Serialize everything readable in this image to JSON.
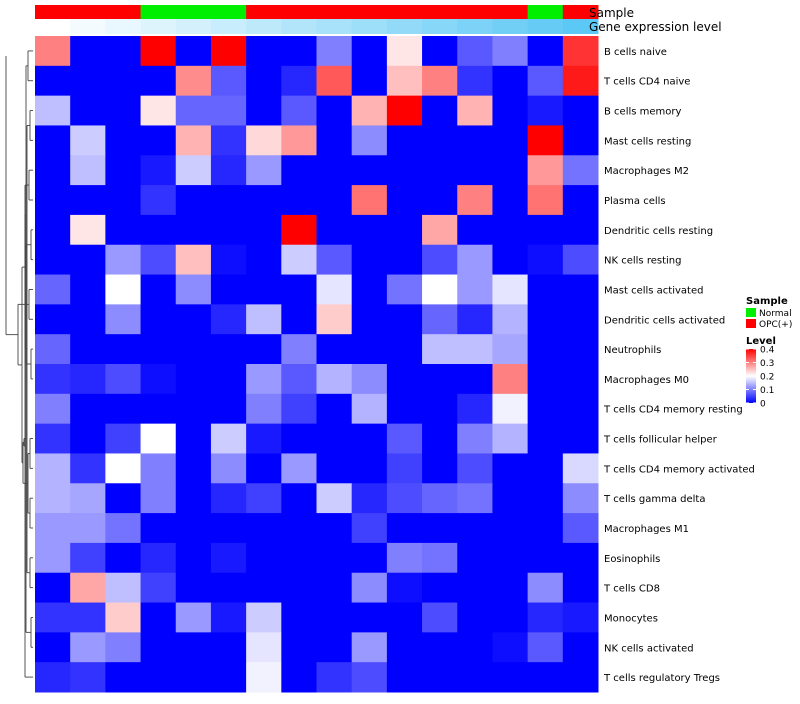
{
  "chart_data": {
    "type": "heatmap",
    "title": "",
    "annotation_labels": {
      "sample": "Sample",
      "gene_expression": "Gene expression level"
    },
    "sample_groups": [
      "OPC(+)",
      "OPC(+)",
      "OPC(+)",
      "Normal",
      "Normal",
      "Normal",
      "OPC(+)",
      "OPC(+)",
      "OPC(+)",
      "OPC(+)",
      "OPC(+)",
      "OPC(+)",
      "OPC(+)",
      "OPC(+)",
      "Normal",
      "OPC(+)"
    ],
    "gene_expression_levels": [
      0.02,
      0.05,
      0.08,
      0.11,
      0.14,
      0.17,
      0.2,
      0.23,
      0.26,
      0.29,
      0.32,
      0.35,
      0.38,
      0.41,
      0.44,
      0.47
    ],
    "rows": [
      "B cells naive",
      "T cells CD4 naive",
      "B cells memory",
      "Mast cells resting",
      "Macrophages M2",
      "Plasma cells",
      "Dendritic cells resting",
      "NK cells resting",
      "Mast cells activated",
      "Dendritic cells activated",
      "Neutrophils",
      "Macrophages M0",
      "T cells CD4 memory resting",
      "T cells follicular helper",
      "T cells CD4 memory activated",
      "T cells gamma delta",
      "Macrophages M1",
      "Eosinophils",
      "T cells CD8",
      "Monocytes",
      "NK cells activated",
      "T cells regulatory  Tregs"
    ],
    "values": [
      [
        0.3,
        0,
        0,
        0.4,
        0,
        0.4,
        0,
        0,
        0.1,
        0,
        0.22,
        0,
        0.07,
        0.1,
        0,
        0.36
      ],
      [
        0,
        0,
        0,
        0,
        0.29,
        0.07,
        0,
        0.03,
        0.33,
        0,
        0.25,
        0.3,
        0.04,
        0,
        0.07,
        0.38
      ],
      [
        0.15,
        0,
        0,
        0.22,
        0.08,
        0.08,
        0,
        0.07,
        0,
        0.26,
        0.4,
        0,
        0.26,
        0,
        0.02,
        0
      ],
      [
        0,
        0.16,
        0,
        0,
        0.26,
        0.04,
        0.23,
        0.28,
        0,
        0.11,
        0,
        0,
        0,
        0,
        0.4,
        0
      ],
      [
        0,
        0.15,
        0,
        0.02,
        0.16,
        0.03,
        0.12,
        0,
        0,
        0,
        0,
        0,
        0,
        0,
        0.28,
        0.09
      ],
      [
        0,
        0,
        0,
        0.04,
        0,
        0,
        0,
        0,
        0,
        0.31,
        0,
        0,
        0.3,
        0,
        0.31,
        0
      ],
      [
        0,
        0.22,
        0,
        0,
        0,
        0,
        0,
        0.4,
        0,
        0,
        0,
        0.27,
        0,
        0,
        0,
        0
      ],
      [
        0,
        0,
        0.12,
        0.06,
        0.25,
        0.01,
        0,
        0.16,
        0.07,
        0,
        0,
        0.06,
        0.12,
        0,
        0.01,
        0.06
      ],
      [
        0.08,
        0,
        0.2,
        0,
        0.11,
        0,
        0,
        0,
        0.18,
        0,
        0.09,
        0.2,
        0.12,
        0.18,
        0,
        0
      ],
      [
        0,
        0,
        0.11,
        0,
        0,
        0.03,
        0.15,
        0,
        0.24,
        0,
        0,
        0.08,
        0.03,
        0.14,
        0,
        0
      ],
      [
        0.08,
        0,
        0,
        0,
        0,
        0,
        0,
        0.1,
        0,
        0,
        0,
        0.15,
        0.15,
        0.13,
        0,
        0
      ],
      [
        0.04,
        0.03,
        0.06,
        0.01,
        0,
        0,
        0.12,
        0.07,
        0.14,
        0.11,
        0,
        0,
        0,
        0.3,
        0,
        0
      ],
      [
        0.1,
        0,
        0,
        0,
        0,
        0,
        0.1,
        0.05,
        0,
        0.14,
        0,
        0,
        0.03,
        0.19,
        0,
        0
      ],
      [
        0.04,
        0,
        0.05,
        0.2,
        0,
        0.16,
        0.02,
        0,
        0,
        0,
        0.07,
        0,
        0.1,
        0.14,
        0,
        0
      ],
      [
        0.14,
        0.04,
        0.2,
        0.1,
        0,
        0.11,
        0,
        0.12,
        0,
        0,
        0.05,
        0,
        0.06,
        0,
        0,
        0.17
      ],
      [
        0.14,
        0.13,
        0,
        0.1,
        0,
        0.03,
        0.05,
        0,
        0.16,
        0.03,
        0.06,
        0.08,
        0.09,
        0,
        0,
        0.11
      ],
      [
        0.12,
        0.12,
        0.09,
        0,
        0,
        0,
        0,
        0,
        0,
        0.05,
        0,
        0,
        0,
        0,
        0,
        0.07
      ],
      [
        0.12,
        0.05,
        0,
        0.03,
        0,
        0.02,
        0,
        0,
        0,
        0,
        0.1,
        0.09,
        0,
        0,
        0,
        0
      ],
      [
        0,
        0.27,
        0.15,
        0.05,
        0,
        0,
        0,
        0,
        0,
        0.11,
        0.01,
        0,
        0,
        0,
        0.11,
        0
      ],
      [
        0.04,
        0.04,
        0.24,
        0,
        0.12,
        0.02,
        0.16,
        0,
        0,
        0,
        0,
        0.06,
        0,
        0,
        0.03,
        0.02
      ],
      [
        0,
        0.12,
        0.1,
        0,
        0,
        0,
        0.18,
        0,
        0,
        0.12,
        0,
        0,
        0,
        0.01,
        0.07,
        0
      ],
      [
        0.03,
        0.04,
        0,
        0,
        0,
        0,
        0.19,
        0,
        0.04,
        0.06,
        0,
        0,
        0,
        0,
        0,
        0
      ]
    ],
    "color_scale": {
      "min": 0,
      "mid": 0.2,
      "max": 0.4,
      "low": "#0000FF",
      "mid_color": "#FFFFFF",
      "high": "#FF0000"
    },
    "legend": {
      "sample_title": "Sample",
      "sample_entries": [
        {
          "label": "Normal",
          "color": "#00EE00"
        },
        {
          "label": "OPC(+)",
          "color": "#FF0000"
        }
      ],
      "level_title": "Level",
      "level_ticks": [
        "0.4",
        "0.3",
        "0.2",
        "0.1",
        "0"
      ],
      "level_tick_values": [
        0.4,
        0.3,
        0.2,
        0.1,
        0
      ]
    },
    "annotation_colors": {
      "Normal": "#00EE00",
      "OPC(+)": "#FF0000",
      "expr_low": "#FFFFFF",
      "expr_high": "#5BC8F5"
    }
  }
}
